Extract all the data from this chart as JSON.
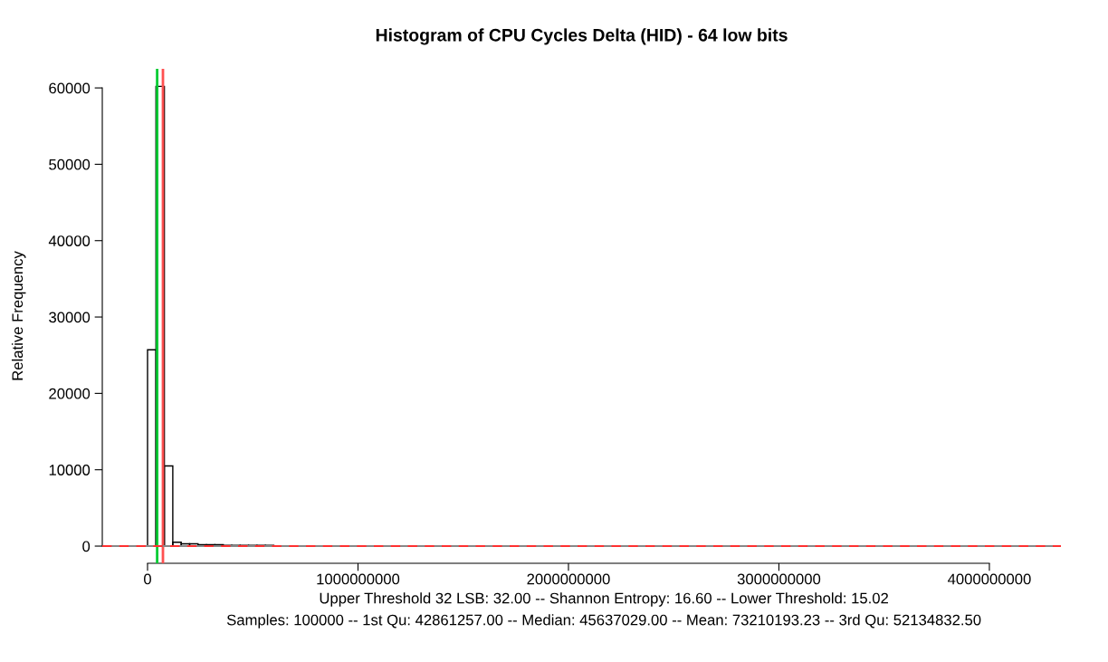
{
  "chart_data": {
    "type": "histogram",
    "title": "Histogram of CPU Cycles Delta (HID) - 64 low bits",
    "ylabel": "Relative Frequency",
    "bins": [
      0,
      40000000,
      80000000,
      120000000,
      160000000,
      200000000,
      240000000,
      280000000,
      320000000,
      360000000,
      400000000,
      440000000,
      480000000,
      520000000,
      560000000,
      600000000,
      640000000,
      680000000,
      720000000,
      760000000,
      800000000,
      840000000,
      880000000,
      920000000,
      960000000,
      1000000000
    ],
    "values": [
      25700,
      60200,
      10500,
      500,
      300,
      300,
      200,
      200,
      200,
      100,
      100,
      100,
      100,
      100,
      100,
      0,
      0,
      0,
      0,
      0,
      0,
      0,
      0,
      0,
      0
    ],
    "xlim": [
      -215000000,
      4340000000
    ],
    "ylim": [
      -2250,
      62500
    ],
    "xticks": [
      0,
      1000000000,
      2000000000,
      3000000000,
      4000000000
    ],
    "yticks": [
      0,
      10000,
      20000,
      30000,
      40000,
      50000,
      60000
    ],
    "ref_lines": [
      {
        "axis": "x",
        "value": 45637029,
        "color": "#00cc33",
        "line_style": "solid"
      },
      {
        "axis": "x",
        "value": 73210193.23,
        "color": "#ff5050",
        "line_style": "solid"
      },
      {
        "axis": "y",
        "value": 0,
        "color": "#888888",
        "line_style": "solid"
      },
      {
        "axis": "y",
        "value": 0,
        "color": "#ff3030",
        "line_style": "dashed"
      }
    ],
    "annotations": [
      "Upper Threshold 32 LSB: 32.00 -- Shannon Entropy: 16.60 -- Lower Threshold: 15.02",
      "Samples: 100000 -- 1st Qu: 42861257.00 -- Median: 45637029.00 -- Mean: 73210193.23 -- 3rd Qu: 52134832.50"
    ],
    "grid": false
  }
}
